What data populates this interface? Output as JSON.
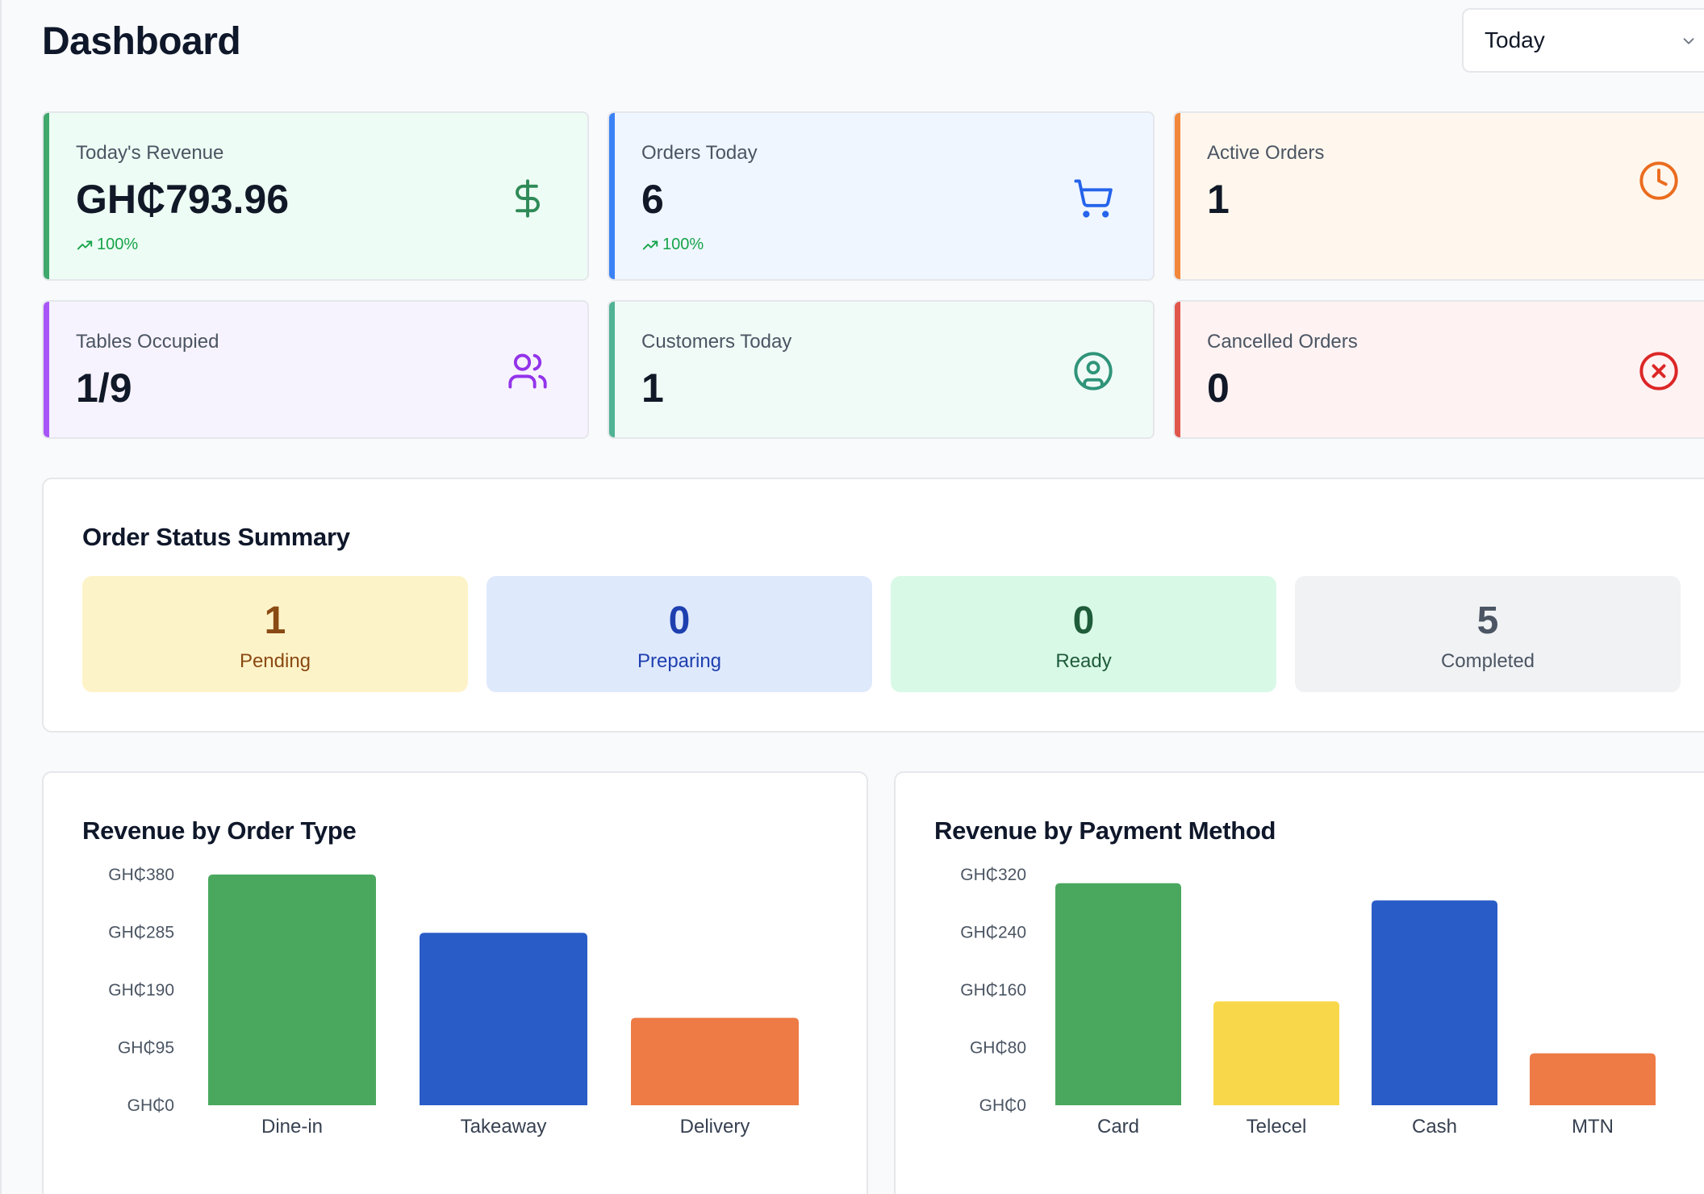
{
  "header": {
    "title": "Dashboard"
  },
  "range_select": {
    "value": "Today",
    "icon": "chevron-down-icon"
  },
  "stats": [
    {
      "key": "revenue",
      "label": "Today's Revenue",
      "value": "GH₵793.96",
      "trend": "100%",
      "icon": "dollar-icon",
      "accent": "#3fa86b",
      "bg": "#edfcf4",
      "icon_color": "#2f8a57"
    },
    {
      "key": "orders",
      "label": "Orders Today",
      "value": "6",
      "trend": "100%",
      "icon": "cart-icon",
      "accent": "#3b82f6",
      "bg": "#eff6ff",
      "icon_color": "#2563eb"
    },
    {
      "key": "active",
      "label": "Active Orders",
      "value": "1",
      "icon": "clock-icon",
      "accent": "#f2873a",
      "bg": "#fff7ed",
      "icon_color": "#ea6c1f"
    },
    {
      "key": "tables",
      "label": "Tables Occupied",
      "value": "1/9",
      "icon": "users-icon",
      "accent": "#a855f7",
      "bg": "#f7f3fe",
      "icon_color": "#9333ea"
    },
    {
      "key": "customers",
      "label": "Customers Today",
      "value": "1",
      "icon": "user-circle-icon",
      "accent": "#4fb394",
      "bg": "#f0fbf7",
      "icon_color": "#2f9479"
    },
    {
      "key": "cancelled",
      "label": "Cancelled Orders",
      "value": "0",
      "icon": "x-circle-icon",
      "accent": "#e0554c",
      "bg": "#fef2f2",
      "icon_color": "#dc2626"
    }
  ],
  "order_status": {
    "title": "Order Status Summary",
    "items": [
      {
        "key": "pending",
        "count": "1",
        "label": "Pending",
        "bg": "#fdf3c9",
        "color": "#8a4a13"
      },
      {
        "key": "preparing",
        "count": "0",
        "label": "Preparing",
        "bg": "#dfe9fc",
        "color": "#1e40af"
      },
      {
        "key": "ready",
        "count": "0",
        "label": "Ready",
        "bg": "#d9f9e7",
        "color": "#1f5c3a"
      },
      {
        "key": "completed",
        "count": "5",
        "label": "Completed",
        "bg": "#f1f2f4",
        "color": "#4b5563"
      }
    ]
  },
  "charts": {
    "order_type": {
      "title": "Revenue by Order Type",
      "chart_data": {
        "type": "bar",
        "categories": [
          "Dine-in",
          "Takeaway",
          "Delivery"
        ],
        "values": [
          380,
          284,
          144
        ],
        "colors": [
          "#4aa85e",
          "#2a5cc8",
          "#ee7a45"
        ],
        "yticks": [
          "GH₵0",
          "GH₵95",
          "GH₵190",
          "GH₵285",
          "GH₵380"
        ],
        "ytick_values": [
          0,
          95,
          190,
          285,
          380
        ],
        "ylim": [
          0,
          380
        ],
        "grid": false
      }
    },
    "payment_method": {
      "title": "Revenue by Payment Method",
      "chart_data": {
        "type": "bar",
        "categories": [
          "Card",
          "Telecel",
          "Cash",
          "MTN"
        ],
        "values": [
          308,
          144,
          284,
          72
        ],
        "colors": [
          "#4aa85e",
          "#f8d84a",
          "#2a5cc8",
          "#ee7a45"
        ],
        "yticks": [
          "GH₵0",
          "GH₵80",
          "GH₵160",
          "GH₵240",
          "GH₵320"
        ],
        "ytick_values": [
          0,
          80,
          160,
          240,
          320
        ],
        "ylim": [
          0,
          320
        ],
        "grid": false
      }
    }
  }
}
